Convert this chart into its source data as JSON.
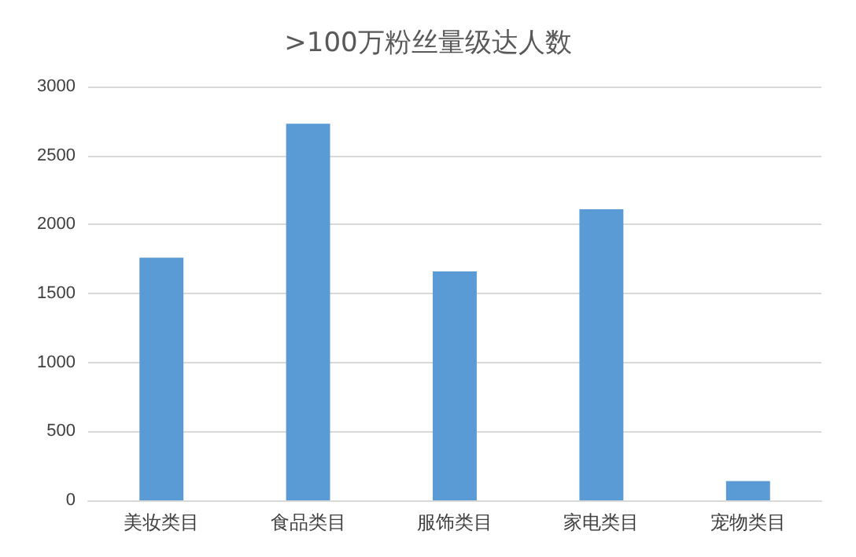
{
  "chart_data": {
    "type": "bar",
    "title": ">100万粉丝量级达人数",
    "categories": [
      "美妆类目",
      "食品类目",
      "服饰类目",
      "家电类目",
      "宠物类目"
    ],
    "values": [
      1760,
      2730,
      1660,
      2110,
      140
    ],
    "color": "#5b9bd5",
    "ylim": [
      0,
      3000
    ],
    "yticks": [
      0,
      500,
      1000,
      1500,
      2000,
      2500,
      3000
    ],
    "grid": "y"
  }
}
